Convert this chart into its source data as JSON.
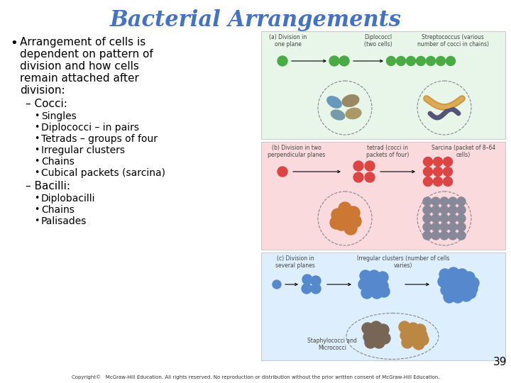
{
  "title": "Bacterial Arrangements",
  "title_color": "#4472C4",
  "title_fontsize": 22,
  "background_color": "#FFFFFF",
  "bullet_main": "Arrangement of cells is dependent on pattern of division and how cells remain attached after division:",
  "bullet_fontsize": 11,
  "sub1_header": "– Cocci:",
  "sub1_header_fontsize": 11,
  "sub1_items": [
    "Singles",
    "Diplococci – in pairs",
    "Tetrads – groups of four",
    "Irregular clusters",
    "Chains",
    "Cubical packets (sarcina)"
  ],
  "sub2_header": "– Bacilli:",
  "sub2_header_fontsize": 11,
  "sub2_items": [
    "Diplobacilli",
    "Chains",
    "Palisades"
  ],
  "item_fontsize": 10,
  "panel_a_color": "#E8F5E9",
  "panel_b_color": "#FADADD",
  "panel_c_color": "#DDEEFF",
  "page_number": "39",
  "copyright": "Copyright©   McGraw-Hill Education. All rights reserved. No reproduction or distribution without the prior written consent of McGraw-Hill Education.",
  "copyright_fontsize": 5,
  "panel_label_fontsize": 5.5,
  "green_cell_color": "#4aaa44",
  "red_cell_color": "#dd4444",
  "orange_cell_color": "#cc7733",
  "grey_cell_color": "#888899",
  "blue_cell_color": "#5588cc",
  "brown_cell_color": "#776655",
  "tan_cell_color": "#bb8844"
}
